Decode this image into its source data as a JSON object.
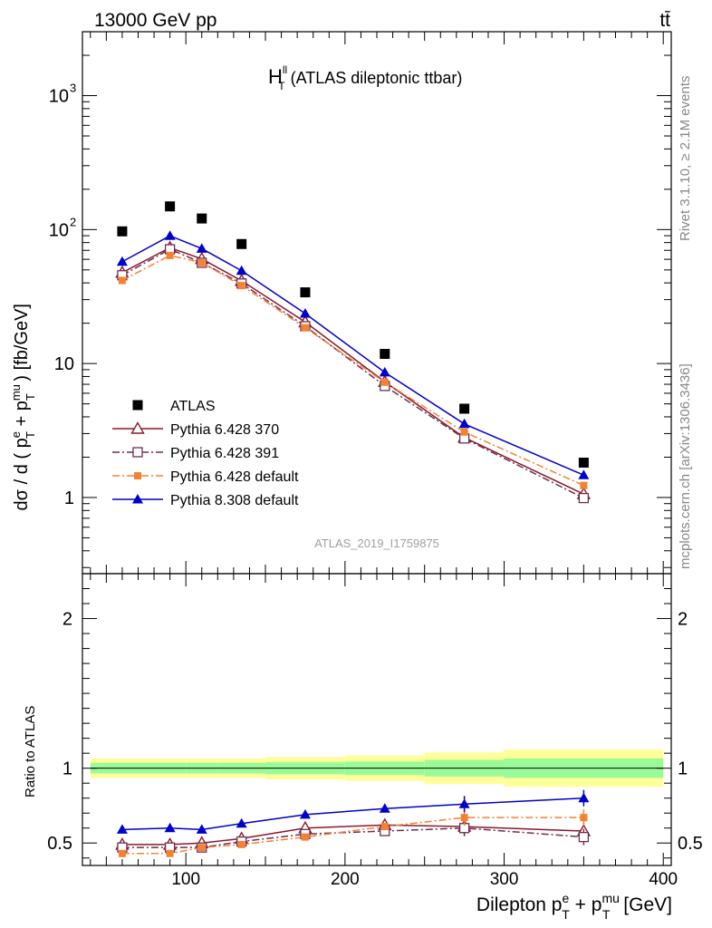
{
  "header": {
    "left": "13000 GeV pp",
    "right": "tt̄"
  },
  "side_text": {
    "rivet": "Rivet 3.1.10, ≥ 2.1M events",
    "mcplots": "mcplots.cern.ch [arXiv:1306.3436]"
  },
  "watermark": "ATLAS_2019_I1759875",
  "chart_data": [
    {
      "type": "scatter",
      "panel": "main",
      "title": "H_T^ll (ATLAS dileptonic ttbar)",
      "title_main": "H",
      "title_sup": "ll",
      "title_sub": "T",
      "title_rest": "(ATLAS dileptonic ttbar)",
      "ylabel": "dσ / d ( p_T^e + p_T^mu ) [fb/GeV]",
      "yscale": "log",
      "xlim": [
        35,
        405
      ],
      "ylim": [
        0.27,
        3000
      ],
      "yticks": [
        {
          "value": 1,
          "label": "1"
        },
        {
          "value": 10,
          "label": "10"
        },
        {
          "value": 100,
          "label": "10",
          "sup": "2"
        },
        {
          "value": 1000,
          "label": "10",
          "sup": "3"
        }
      ],
      "legend_position": "lower-left",
      "x": [
        60,
        90,
        110,
        135,
        175,
        225,
        275,
        350
      ],
      "series": [
        {
          "name": "ATLAS",
          "color": "#000000",
          "marker": "square",
          "line": "none",
          "values": [
            97,
            149,
            121,
            78,
            34,
            11.8,
            4.6,
            1.82
          ]
        },
        {
          "name": "Pythia 6.428 370",
          "color": "#8b1a2b",
          "marker": "open-triangle",
          "line": "solid",
          "values": [
            47.7,
            73.3,
            60.4,
            41.5,
            20.4,
            7.3,
            2.8,
            1.06
          ]
        },
        {
          "name": "Pythia 6.428 391",
          "color": "#6e3050",
          "marker": "open-square",
          "line": "dashdot",
          "values": [
            45.6,
            71.3,
            56.5,
            39.6,
            19.0,
            6.8,
            2.76,
            0.99
          ]
        },
        {
          "name": "Pythia 6.428 default",
          "color": "#f58231",
          "marker": "filled-square",
          "line": "dashdot",
          "values": [
            41.7,
            64.1,
            56.6,
            38.2,
            18.5,
            7.25,
            3.08,
            1.23
          ]
        },
        {
          "name": "Pythia 8.308 default",
          "color": "#0000cc",
          "marker": "filled-triangle",
          "line": "solid",
          "values": [
            57.6,
            89.8,
            72.1,
            49.3,
            23.6,
            8.6,
            3.54,
            1.47
          ]
        }
      ]
    },
    {
      "type": "line",
      "panel": "ratio",
      "ylabel": "Ratio to ATLAS",
      "xlabel": "Dilepton p_T^e + p_T^mu [GeV]",
      "xlim": [
        35,
        405
      ],
      "ylim": [
        0.35,
        2.3
      ],
      "xticks": [
        100,
        200,
        300,
        400
      ],
      "yticks": [
        0.5,
        1,
        2
      ],
      "x": [
        60,
        90,
        110,
        135,
        175,
        225,
        275,
        350
      ],
      "bands": {
        "edges": [
          40,
          80,
          100,
          120,
          150,
          200,
          250,
          300,
          400
        ],
        "stat_halfwidth": [
          0.035,
          0.035,
          0.035,
          0.035,
          0.04,
          0.045,
          0.055,
          0.065
        ],
        "total_halfwidth": [
          0.065,
          0.065,
          0.065,
          0.065,
          0.075,
          0.085,
          0.105,
          0.125
        ],
        "stat_color": "#98fb98",
        "total_color": "#ffff99"
      },
      "series": [
        {
          "name": "Pythia 6.428 370",
          "color": "#8b1a2b",
          "values": [
            0.49,
            0.49,
            0.5,
            0.53,
            0.6,
            0.62,
            0.61,
            0.58
          ]
        },
        {
          "name": "Pythia 6.428 391",
          "color": "#6e3050",
          "values": [
            0.47,
            0.47,
            0.47,
            0.51,
            0.56,
            0.58,
            0.6,
            0.54
          ]
        },
        {
          "name": "Pythia 6.428 default",
          "color": "#f58231",
          "values": [
            0.43,
            0.43,
            0.47,
            0.49,
            0.54,
            0.61,
            0.67,
            0.67
          ]
        },
        {
          "name": "Pythia 8.308 default",
          "color": "#0000cc",
          "values": [
            0.59,
            0.6,
            0.59,
            0.63,
            0.69,
            0.73,
            0.76,
            0.8
          ]
        }
      ]
    }
  ]
}
